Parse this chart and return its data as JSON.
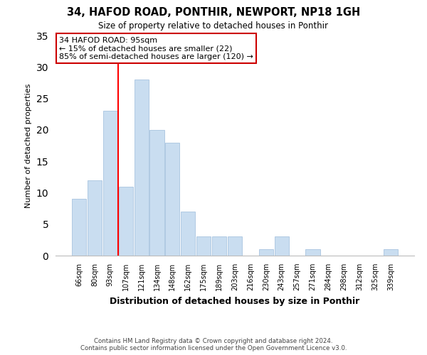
{
  "title": "34, HAFOD ROAD, PONTHIR, NEWPORT, NP18 1GH",
  "subtitle": "Size of property relative to detached houses in Ponthir",
  "xlabel": "Distribution of detached houses by size in Ponthir",
  "ylabel": "Number of detached properties",
  "bar_labels": [
    "66sqm",
    "80sqm",
    "93sqm",
    "107sqm",
    "121sqm",
    "134sqm",
    "148sqm",
    "162sqm",
    "175sqm",
    "189sqm",
    "203sqm",
    "216sqm",
    "230sqm",
    "243sqm",
    "257sqm",
    "271sqm",
    "284sqm",
    "298sqm",
    "312sqm",
    "325sqm",
    "339sqm"
  ],
  "bar_values": [
    9,
    12,
    23,
    11,
    28,
    20,
    18,
    7,
    3,
    3,
    3,
    0,
    1,
    3,
    0,
    1,
    0,
    0,
    0,
    0,
    1
  ],
  "bar_color": "#c9ddf0",
  "bar_edge_color": "#a8c4e0",
  "vline_color": "red",
  "annotation_title": "34 HAFOD ROAD: 95sqm",
  "annotation_line1": "← 15% of detached houses are smaller (22)",
  "annotation_line2": "85% of semi-detached houses are larger (120) →",
  "annotation_box_color": "white",
  "annotation_box_edge": "#cc0000",
  "ylim": [
    0,
    35
  ],
  "yticks": [
    0,
    5,
    10,
    15,
    20,
    25,
    30,
    35
  ],
  "footer_line1": "Contains HM Land Registry data © Crown copyright and database right 2024.",
  "footer_line2": "Contains public sector information licensed under the Open Government Licence v3.0.",
  "bg_color": "#ffffff"
}
